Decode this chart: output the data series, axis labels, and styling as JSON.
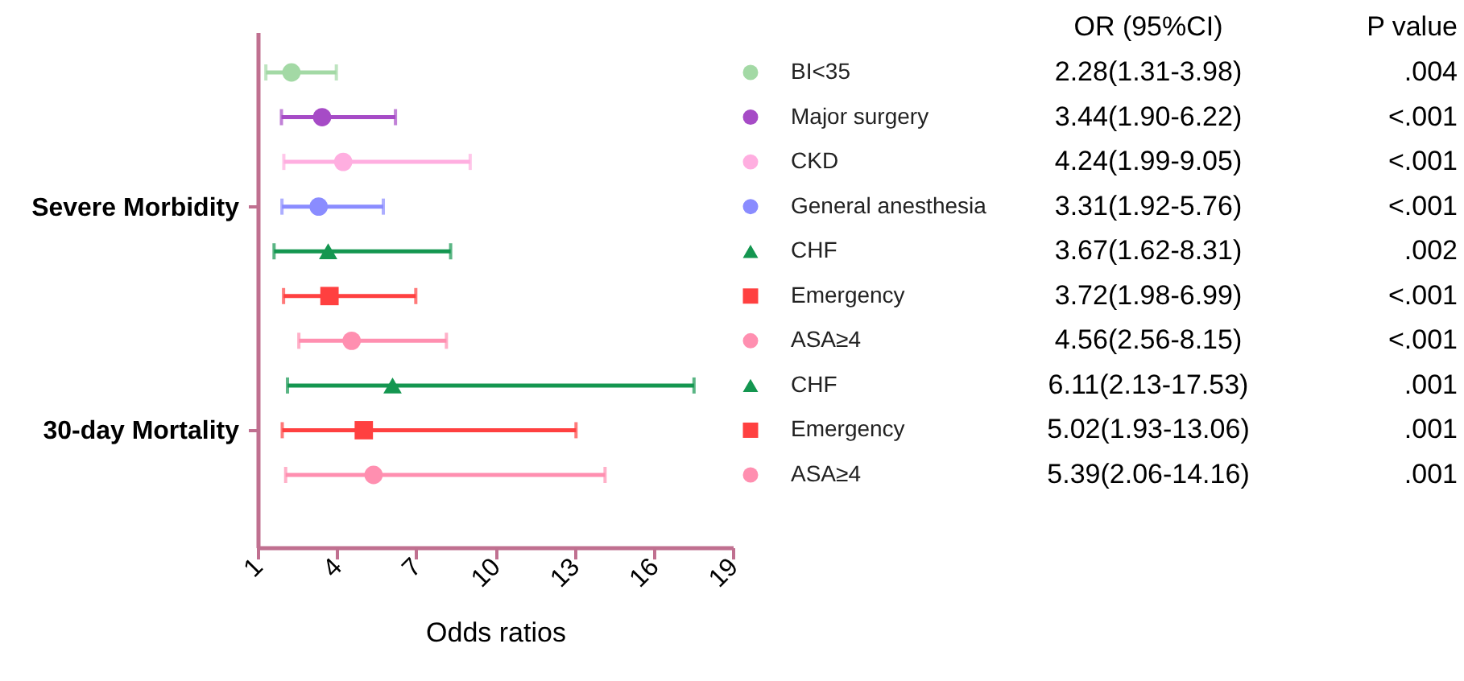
{
  "chart_data": {
    "type": "scatter",
    "orientation": "horizontal",
    "xlabel": "Odds ratios",
    "xlim": [
      1,
      19
    ],
    "xticks": [
      1,
      4,
      7,
      10,
      13,
      16,
      19
    ],
    "grid": false,
    "legend": "right",
    "categories": [
      null,
      null,
      null,
      "Severe Morbidity",
      null,
      null,
      null,
      null,
      "30-day Mortality",
      null
    ],
    "annotations": [
      "OR (95%CI)",
      "P value",
      "2.28(1.31-3.98)",
      "3.44(1.90-6.22)",
      "4.24(1.99-9.05)",
      "3.31(1.92-5.76)",
      "3.67(1.62-8.31)",
      "3.72(1.98-6.99)",
      "4.56(2.56-8.15)",
      "6.11(2.13-17.53)",
      "5.02(1.93-13.06)",
      "5.39(2.06-14.16)",
      ".004",
      "<.001",
      "<.001",
      "<.001",
      ".002",
      "<.001",
      "<.001",
      ".001",
      ".001",
      ".001"
    ],
    "series": [
      {
        "name": "BI<35",
        "color": "#a3d9a5",
        "marker": "circle",
        "values": [
          2.28,
          null,
          null,
          null,
          null,
          null,
          null,
          null,
          null,
          null
        ],
        "errors": [
          [
            1.31,
            3.98
          ],
          null,
          null,
          null,
          null,
          null,
          null,
          null,
          null,
          null
        ]
      },
      {
        "name": "Major surgery",
        "color": "#a64bc6",
        "marker": "circle",
        "values": [
          null,
          3.44,
          null,
          null,
          null,
          null,
          null,
          null,
          null,
          null
        ],
        "errors": [
          null,
          [
            1.9,
            6.22
          ],
          null,
          null,
          null,
          null,
          null,
          null,
          null,
          null
        ]
      },
      {
        "name": "CKD",
        "color": "#ffaee0",
        "marker": "circle",
        "values": [
          null,
          null,
          4.24,
          null,
          null,
          null,
          null,
          null,
          null,
          null
        ],
        "errors": [
          null,
          null,
          [
            1.99,
            9.05
          ],
          null,
          null,
          null,
          null,
          null,
          null,
          null
        ]
      },
      {
        "name": "General anesthesia",
        "color": "#8a8cff",
        "marker": "circle",
        "values": [
          null,
          null,
          null,
          3.31,
          null,
          null,
          null,
          null,
          null,
          null
        ],
        "errors": [
          null,
          null,
          null,
          [
            1.92,
            5.76
          ],
          null,
          null,
          null,
          null,
          null,
          null
        ]
      },
      {
        "name": "CHF",
        "color": "#149650",
        "marker": "triangle",
        "values": [
          null,
          null,
          null,
          null,
          3.67,
          null,
          null,
          null,
          null,
          null
        ],
        "errors": [
          null,
          null,
          null,
          null,
          [
            1.62,
            8.31
          ],
          null,
          null,
          null,
          null,
          null
        ]
      },
      {
        "name": "Emergency",
        "color": "#ff4040",
        "marker": "square",
        "values": [
          null,
          null,
          null,
          null,
          null,
          3.72,
          null,
          null,
          null,
          null
        ],
        "errors": [
          null,
          null,
          null,
          null,
          null,
          [
            1.98,
            6.99
          ],
          null,
          null,
          null,
          null
        ]
      },
      {
        "name": "ASA≥4",
        "color": "#ff8fb0",
        "marker": "circle",
        "values": [
          null,
          null,
          null,
          null,
          null,
          null,
          4.56,
          null,
          null,
          null
        ],
        "errors": [
          null,
          null,
          null,
          null,
          null,
          null,
          [
            2.56,
            8.15
          ],
          null,
          null,
          null
        ]
      },
      {
        "name": "CHF",
        "color": "#149650",
        "marker": "triangle",
        "values": [
          null,
          null,
          null,
          null,
          null,
          null,
          null,
          6.11,
          null,
          null
        ],
        "errors": [
          null,
          null,
          null,
          null,
          null,
          null,
          null,
          [
            2.13,
            17.53
          ],
          null,
          null
        ]
      },
      {
        "name": "Emergency",
        "color": "#ff4040",
        "marker": "square",
        "values": [
          null,
          null,
          null,
          null,
          null,
          null,
          null,
          null,
          5.02,
          null
        ],
        "errors": [
          null,
          null,
          null,
          null,
          null,
          null,
          null,
          null,
          [
            1.93,
            13.06
          ],
          null
        ]
      },
      {
        "name": "ASA≥4",
        "color": "#ff8fb0",
        "marker": "circle",
        "values": [
          null,
          null,
          null,
          null,
          null,
          null,
          null,
          null,
          null,
          5.39
        ],
        "errors": [
          null,
          null,
          null,
          null,
          null,
          null,
          null,
          null,
          null,
          [
            2.06,
            14.16
          ]
        ]
      }
    ]
  }
}
